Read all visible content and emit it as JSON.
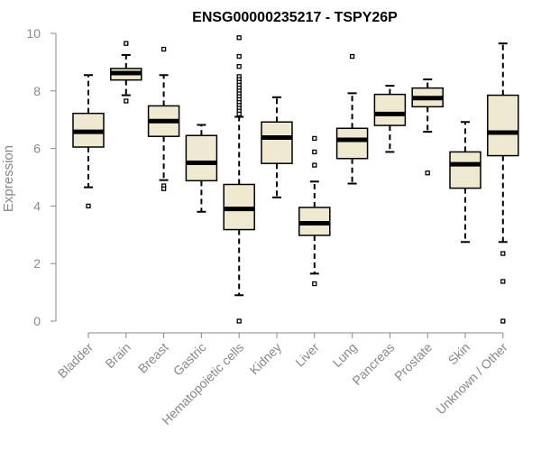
{
  "chart_data": {
    "type": "boxplot",
    "title": "ENSG00000235217 - TSPY26P",
    "xlabel": "",
    "ylabel": "Expression",
    "ylim": [
      0,
      10
    ],
    "yticks": [
      0,
      2,
      4,
      6,
      8,
      10
    ],
    "grid": false,
    "categories": [
      "Bladder",
      "Brain",
      "Breast",
      "Gastric",
      "Hematopoietic cells",
      "Kidney",
      "Liver",
      "Lung",
      "Pancreas",
      "Prostate",
      "Skin",
      "Unknown / Other"
    ],
    "boxes": [
      {
        "whisker_low": 4.65,
        "q1": 6.05,
        "median": 6.58,
        "q3": 7.22,
        "whisker_high": 8.55,
        "outliers": [
          4.0
        ]
      },
      {
        "whisker_low": 7.85,
        "q1": 8.38,
        "median": 8.62,
        "q3": 8.78,
        "whisker_high": 9.25,
        "outliers": [
          9.65,
          7.65
        ]
      },
      {
        "whisker_low": 4.9,
        "q1": 6.42,
        "median": 6.95,
        "q3": 7.48,
        "whisker_high": 8.55,
        "outliers": [
          9.45,
          4.7,
          4.6
        ]
      },
      {
        "whisker_low": 3.8,
        "q1": 4.88,
        "median": 5.5,
        "q3": 6.45,
        "whisker_high": 6.82,
        "outliers": []
      },
      {
        "whisker_low": 0.9,
        "q1": 3.18,
        "median": 3.9,
        "q3": 4.75,
        "whisker_high": 7.1,
        "outliers": [
          9.85,
          9.2,
          8.85,
          8.5,
          8.4,
          8.3,
          8.2,
          8.1,
          8.0,
          7.9,
          7.8,
          7.7,
          7.6,
          7.5,
          7.4,
          7.3,
          7.2,
          0.0
        ]
      },
      {
        "whisker_low": 4.3,
        "q1": 5.48,
        "median": 6.38,
        "q3": 6.92,
        "whisker_high": 7.78,
        "outliers": []
      },
      {
        "whisker_low": 1.65,
        "q1": 2.98,
        "median": 3.4,
        "q3": 3.95,
        "whisker_high": 4.85,
        "outliers": [
          6.35,
          5.88,
          5.42,
          1.3
        ]
      },
      {
        "whisker_low": 4.78,
        "q1": 5.65,
        "median": 6.3,
        "q3": 6.7,
        "whisker_high": 7.92,
        "outliers": [
          9.2
        ]
      },
      {
        "whisker_low": 5.88,
        "q1": 6.8,
        "median": 7.2,
        "q3": 7.88,
        "whisker_high": 8.18,
        "outliers": []
      },
      {
        "whisker_low": 6.58,
        "q1": 7.45,
        "median": 7.75,
        "q3": 8.1,
        "whisker_high": 8.4,
        "outliers": [
          5.15
        ]
      },
      {
        "whisker_low": 2.75,
        "q1": 4.62,
        "median": 5.45,
        "q3": 5.88,
        "whisker_high": 6.92,
        "outliers": []
      },
      {
        "whisker_low": 2.75,
        "q1": 5.75,
        "median": 6.55,
        "q3": 7.85,
        "whisker_high": 9.65,
        "outliers": [
          2.35,
          1.38,
          0.0
        ]
      }
    ],
    "box_color": "#efe9d2",
    "line_color": "#000000",
    "axis_color": "#888888"
  }
}
